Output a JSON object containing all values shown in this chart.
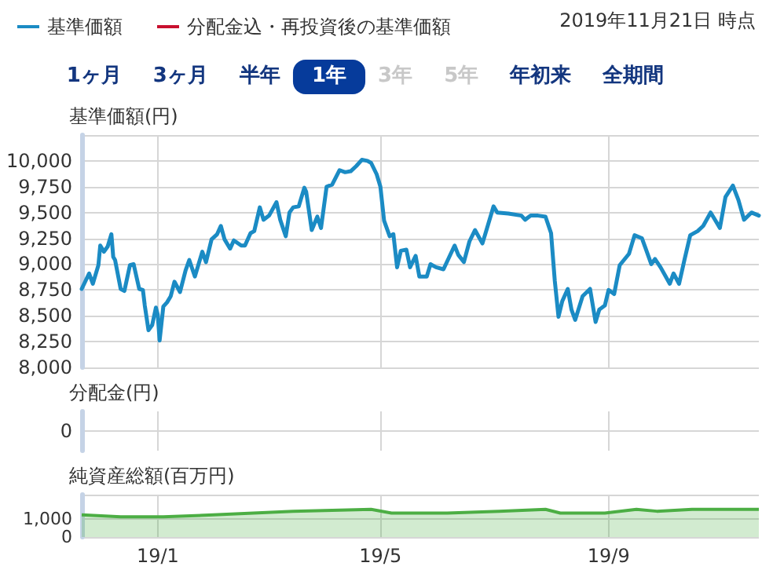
{
  "chart_data": [
    {
      "type": "line",
      "subtitle": "2019年11月21日 時点",
      "ylabel": "基準価額(円)",
      "legend": "top left",
      "grid": true,
      "marker": "none",
      "tick_labels": "y",
      "annotations": [
        "1ヶ月",
        "3ヶ月",
        "半年",
        "1年",
        "3年",
        "5年",
        "年初来",
        "全期間"
      ],
      "xlim": [
        "2018-11-21",
        "2019-11-21"
      ],
      "xticks": [
        {
          "value": "2019-01-01",
          "label": null
        },
        {
          "value": "2019-05-01",
          "label": null
        },
        {
          "value": "2019-09-01",
          "label": null
        }
      ],
      "ylim": [
        8000,
        10250
      ],
      "yticks": [
        {
          "value": 8000,
          "label": "8,000"
        },
        {
          "value": 8250,
          "label": "8,250"
        },
        {
          "value": 8500,
          "label": "8,500"
        },
        {
          "value": 8750,
          "label": "8,750"
        },
        {
          "value": 9000,
          "label": "9,000"
        },
        {
          "value": 9250,
          "label": "9,250"
        },
        {
          "value": 9500,
          "label": "9,500"
        },
        {
          "value": 9750,
          "label": "9,750"
        },
        {
          "value": 10000,
          "label": "10,000"
        },
        {
          "value": 10250,
          "label": null
        }
      ],
      "series": [
        {
          "name": "基準価額",
          "color": "#1b8bc4",
          "x": [
            "2018-11-21",
            "2018-11-25",
            "2018-11-27",
            "2018-11-30",
            "2018-12-01",
            "2018-12-03",
            "2018-12-05",
            "2018-12-07",
            "2018-12-08",
            "2018-12-09",
            "2018-12-12",
            "2018-12-14",
            "2018-12-17",
            "2018-12-19",
            "2018-12-22",
            "2018-12-24",
            "2018-12-25",
            "2018-12-27",
            "2018-12-29",
            "2018-12-31",
            "2019-01-01",
            "2019-01-02",
            "2019-01-04",
            "2019-01-06",
            "2019-01-08",
            "2019-01-10",
            "2019-01-13",
            "2019-01-16",
            "2019-01-18",
            "2019-01-21",
            "2019-01-23",
            "2019-01-25",
            "2019-01-27",
            "2019-01-30",
            "2019-02-02",
            "2019-02-04",
            "2019-02-06",
            "2019-02-09",
            "2019-02-11",
            "2019-02-15",
            "2019-02-17",
            "2019-02-20",
            "2019-02-22",
            "2019-02-25",
            "2019-02-27",
            "2019-03-02",
            "2019-03-06",
            "2019-03-08",
            "2019-03-11",
            "2019-03-13",
            "2019-03-15",
            "2019-03-18",
            "2019-03-21",
            "2019-03-22",
            "2019-03-25",
            "2019-03-28",
            "2019-03-30",
            "2019-04-02",
            "2019-04-05",
            "2019-04-09",
            "2019-04-12",
            "2019-04-15",
            "2019-04-18",
            "2019-04-21",
            "2019-04-24",
            "2019-04-26",
            "2019-04-29",
            "2019-05-01",
            "2019-05-03",
            "2019-05-06",
            "2019-05-08",
            "2019-05-10",
            "2019-05-12",
            "2019-05-15",
            "2019-05-17",
            "2019-05-20",
            "2019-05-22",
            "2019-05-26",
            "2019-05-28",
            "2019-05-31",
            "2019-06-04",
            "2019-06-10",
            "2019-06-12",
            "2019-06-15",
            "2019-06-18",
            "2019-06-21",
            "2019-06-25",
            "2019-06-28",
            "2019-07-01",
            "2019-07-03",
            "2019-07-09",
            "2019-07-16",
            "2019-07-18",
            "2019-07-21",
            "2019-07-25",
            "2019-07-29",
            "2019-08-01",
            "2019-08-03",
            "2019-08-05",
            "2019-08-07",
            "2019-08-10",
            "2019-08-12",
            "2019-08-14",
            "2019-08-18",
            "2019-08-22",
            "2019-08-25",
            "2019-08-27",
            "2019-08-30",
            "2019-09-01",
            "2019-09-04",
            "2019-09-07",
            "2019-09-12",
            "2019-09-15",
            "2019-09-19",
            "2019-09-21",
            "2019-09-24",
            "2019-09-26",
            "2019-09-29",
            "2019-10-04",
            "2019-10-06",
            "2019-10-09",
            "2019-10-12",
            "2019-10-15",
            "2019-10-19",
            "2019-10-22",
            "2019-10-26",
            "2019-10-28",
            "2019-10-31",
            "2019-11-03",
            "2019-11-07",
            "2019-11-10",
            "2019-11-13",
            "2019-11-17",
            "2019-11-21"
          ],
          "values": [
            8760,
            8910,
            8810,
            8990,
            9180,
            9120,
            9170,
            9290,
            9070,
            9040,
            8760,
            8740,
            8990,
            9000,
            8760,
            8750,
            8600,
            8360,
            8410,
            8580,
            8510,
            8260,
            8590,
            8630,
            8690,
            8830,
            8730,
            8940,
            9040,
            8880,
            9000,
            9120,
            9020,
            9240,
            9290,
            9370,
            9240,
            9150,
            9230,
            9180,
            9180,
            9300,
            9320,
            9550,
            9430,
            9470,
            9600,
            9430,
            9270,
            9500,
            9550,
            9560,
            9740,
            9700,
            9330,
            9460,
            9350,
            9750,
            9770,
            9910,
            9890,
            9900,
            9950,
            10010,
            10000,
            9980,
            9870,
            9750,
            9420,
            9270,
            9290,
            8970,
            9130,
            9140,
            8970,
            9080,
            8880,
            8880,
            9000,
            8970,
            8950,
            9180,
            9090,
            9020,
            9220,
            9330,
            9200,
            9380,
            9560,
            9500,
            9490,
            9470,
            9430,
            9470,
            9470,
            9460,
            9300,
            8840,
            8490,
            8640,
            8760,
            8560,
            8460,
            8690,
            8760,
            8440,
            8560,
            8600,
            8750,
            8710,
            8990,
            9100,
            9280,
            9250,
            9150,
            9000,
            9050,
            8970,
            8810,
            8910,
            8810,
            9050,
            9280,
            9320,
            9370,
            9500,
            9440,
            9350,
            9650,
            9760,
            9620,
            9430,
            9500,
            9470
          ]
        },
        {
          "name": "分配金込・再投資後の基準価額",
          "color": "#c8102e"
        }
      ]
    },
    {
      "type": "other",
      "ylabel": "分配金(円)",
      "annotations": [
        "0"
      ]
    },
    {
      "type": "area",
      "ylabel": "純資産総額(百万円)",
      "grid": true,
      "marker": "none",
      "xlim": [
        "2018-11-21",
        "2019-11-21"
      ],
      "xticks": [
        {
          "value": "2019-01-01",
          "label": "19/1"
        },
        {
          "value": "2019-05-01",
          "label": "19/5"
        },
        {
          "value": "2019-09-01",
          "label": "19/9"
        }
      ],
      "ylim": [
        0,
        2300
      ],
      "yticks": [
        {
          "value": 0,
          "label": "0"
        },
        {
          "value": 1000,
          "label": "1,000"
        },
        {
          "value": 2300,
          "label": null
        }
      ],
      "x": [
        "2018-11-21",
        "2018-12-12",
        "2019-01-04",
        "2019-01-31",
        "2019-03-15",
        "2019-04-26",
        "2019-05-07",
        "2019-06-06",
        "2019-07-04",
        "2019-07-29",
        "2019-08-06",
        "2019-08-30",
        "2019-09-16",
        "2019-09-27",
        "2019-10-16",
        "2019-11-04",
        "2019-11-18",
        "2019-11-21"
      ],
      "values": [
        1200,
        1100,
        1100,
        1200,
        1400,
        1500,
        1300,
        1300,
        1400,
        1500,
        1300,
        1300,
        1500,
        1400,
        1500,
        1500,
        1500,
        1500
      ],
      "color": "#4cae44"
    }
  ]
}
